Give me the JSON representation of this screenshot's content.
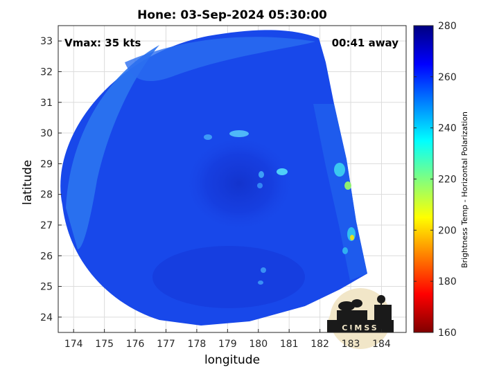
{
  "title": "Hone: 03-Sep-2024 05:30:00",
  "vmax_label": "Vmax: 35 kts",
  "away_label": "00:41 away",
  "x_axis": {
    "label": "longitude",
    "ticks": [
      174,
      175,
      176,
      177,
      178,
      179,
      180,
      181,
      182,
      183,
      184
    ],
    "range": [
      173.5,
      184.8
    ]
  },
  "y_axis": {
    "label": "latitude",
    "ticks": [
      24,
      25,
      26,
      27,
      28,
      29,
      30,
      31,
      32,
      33
    ],
    "range": [
      23.5,
      33.5
    ]
  },
  "colorbar": {
    "label": "Brightness Temp - Horizontal Polarization",
    "ticks": [
      160,
      180,
      200,
      220,
      240,
      260,
      280
    ],
    "range": [
      160,
      280
    ],
    "colors": [
      "#800000",
      "#ff0000",
      "#ff8000",
      "#ffff00",
      "#80ff80",
      "#00ffff",
      "#0080ff",
      "#0000ff",
      "#000080"
    ]
  },
  "logo": {
    "text": "CIMSS"
  },
  "colors": {
    "swath_base": "#1848ea",
    "swath_light": "#2c7cf2",
    "swath_dark": "#1232d0",
    "grid": "#dcdcdc"
  }
}
